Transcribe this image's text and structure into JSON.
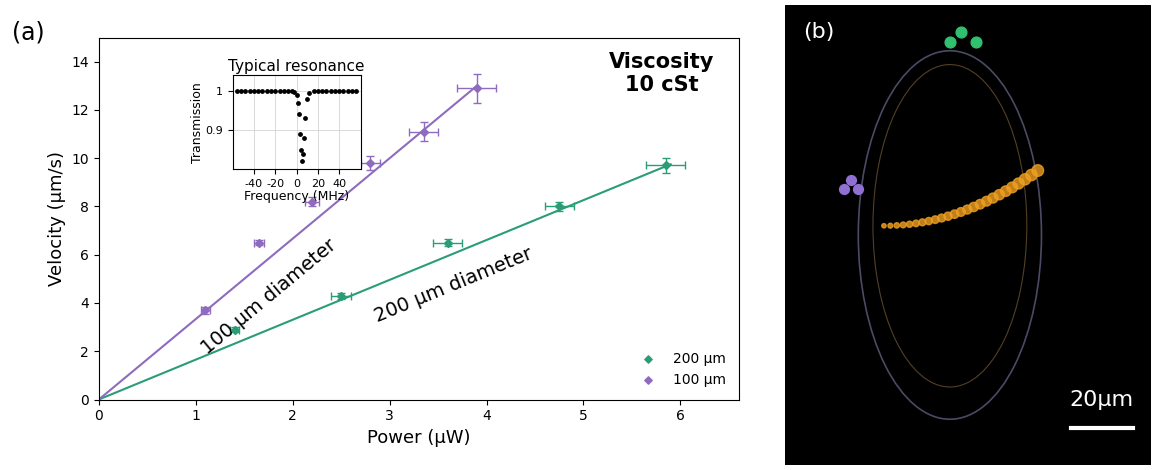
{
  "chart_data": [
    {
      "type": "scatter",
      "panel_label": "(a)",
      "annotations": [
        "Viscosity",
        "10 cSt"
      ],
      "x_label": "Power (µW)",
      "y_label": "Velocity (µm/s)",
      "xlim": [
        0,
        6.6
      ],
      "ylim": [
        0,
        15
      ],
      "xticks": [
        0,
        1,
        2,
        3,
        4,
        5,
        6
      ],
      "yticks": [
        0,
        2,
        4,
        6,
        8,
        10,
        12,
        14
      ],
      "legend": "lower right",
      "marker": "diamond",
      "series": [
        {
          "name": "200 µm",
          "label": "200 µm diameter",
          "color": "#2a9d78",
          "x": [
            1.4,
            2.5,
            3.6,
            4.75,
            5.85
          ],
          "values": [
            2.9,
            4.3,
            6.5,
            8.0,
            9.7
          ],
          "x_error": [
            0.05,
            0.1,
            0.15,
            0.15,
            0.2
          ],
          "y_error": [
            0.1,
            0.12,
            0.15,
            0.2,
            0.3
          ],
          "fit": {
            "x": [
              0,
              5.9
            ],
            "values": [
              0,
              9.75
            ]
          }
        },
        {
          "name": "100 µm",
          "label": "100 µm diameter",
          "color": "#8e6bbf",
          "x": [
            1.1,
            1.65,
            2.2,
            2.8,
            3.35,
            3.9
          ],
          "values": [
            3.7,
            6.5,
            8.2,
            9.8,
            11.1,
            12.9
          ],
          "x_error": [
            0.05,
            0.05,
            0.07,
            0.1,
            0.15,
            0.2
          ],
          "y_error": [
            0.15,
            0.1,
            0.2,
            0.3,
            0.4,
            0.6
          ],
          "fit": {
            "x": [
              0,
              3.9
            ],
            "values": [
              0,
              13.0
            ]
          }
        }
      ]
    },
    {
      "type": "scatter",
      "title": "Typical resonance",
      "x_label": "Frequency (MHz)",
      "y_label": "Transmission",
      "xlim": [
        -60,
        60
      ],
      "ylim": [
        0.8,
        1.04
      ],
      "xticks": [
        -40,
        -20,
        0,
        20,
        40
      ],
      "yticks": [
        0.9,
        1
      ],
      "color": "#000000",
      "marker": "circle",
      "x": [
        -56,
        -52,
        -48,
        -44,
        -40,
        -36,
        -32,
        -28,
        -24,
        -20,
        -16,
        -12,
        -8,
        -4,
        -2,
        0,
        1,
        2,
        3,
        4,
        5,
        6,
        7,
        8,
        10,
        12,
        16,
        20,
        24,
        28,
        32,
        36,
        40,
        44,
        48,
        52,
        56
      ],
      "values": [
        1.0,
        1.0,
        1.0,
        1.0,
        1.0,
        1.0,
        1.0,
        1.0,
        1.0,
        1.0,
        1.0,
        1.0,
        1.0,
        1.0,
        0.998,
        0.99,
        0.97,
        0.94,
        0.89,
        0.85,
        0.82,
        0.84,
        0.88,
        0.93,
        0.98,
        0.995,
        1.0,
        1.0,
        1.0,
        1.0,
        1.0,
        1.0,
        1.0,
        1.0,
        1.0,
        1.0,
        1.0
      ]
    }
  ],
  "image": {
    "panel_label": "(b)",
    "scale_bar": "20µm"
  }
}
